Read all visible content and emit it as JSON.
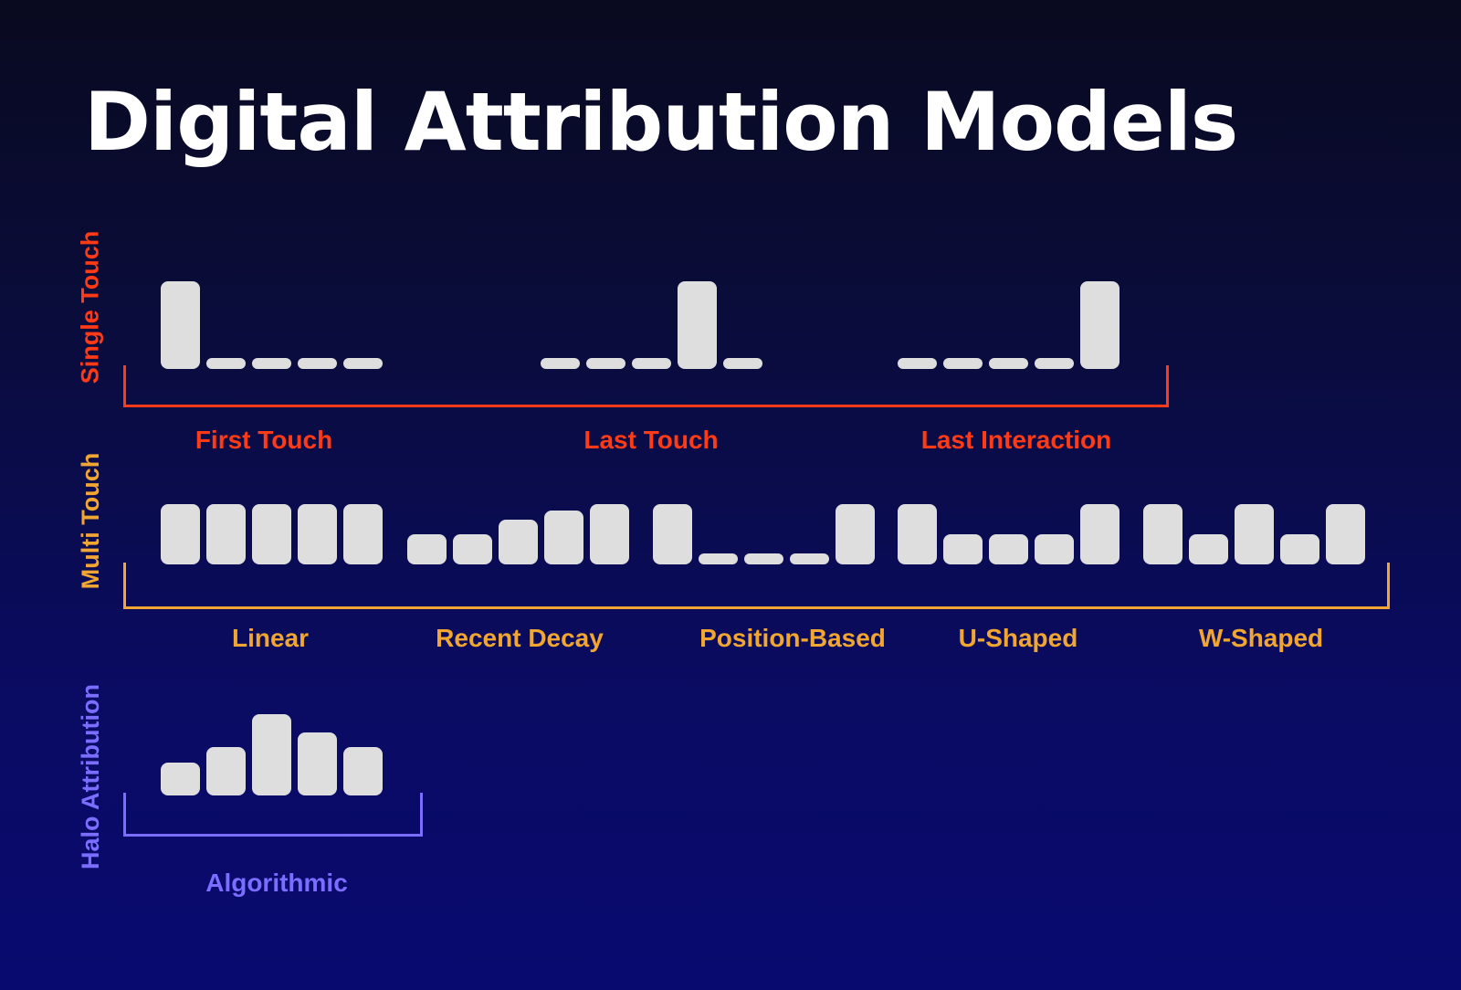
{
  "title": "Digital Attribution Models",
  "colors": {
    "single_touch": "#ff3a16",
    "multi_touch": "#f0a630",
    "halo": "#7b6dff",
    "bar": "#dedede"
  },
  "groups": [
    {
      "name": "Single Touch",
      "color_key": "single_touch",
      "models": [
        {
          "name": "First Touch",
          "weights": [
            1,
            0,
            0,
            0,
            0
          ]
        },
        {
          "name": "Last Touch",
          "weights": [
            0,
            0,
            0,
            1,
            0
          ]
        },
        {
          "name": "Last Interaction",
          "weights": [
            0,
            0,
            0,
            0,
            1
          ]
        }
      ]
    },
    {
      "name": "Multi Touch",
      "color_key": "multi_touch",
      "models": [
        {
          "name": "Linear",
          "weights": [
            1,
            1,
            1,
            1,
            1
          ]
        },
        {
          "name": "Recent Decay",
          "weights": [
            0.5,
            0.5,
            0.75,
            0.9,
            1
          ]
        },
        {
          "name": "Position-Based",
          "weights": [
            1,
            0,
            0,
            0,
            1
          ]
        },
        {
          "name": "U-Shaped",
          "weights": [
            1,
            0.5,
            0.5,
            0.5,
            1
          ]
        },
        {
          "name": "W-Shaped",
          "weights": [
            1,
            0.5,
            1,
            0.5,
            1
          ]
        }
      ]
    },
    {
      "name": "Halo Attribution",
      "color_key": "halo",
      "models": [
        {
          "name": "Algorithmic",
          "weights": [
            0.4,
            0.6,
            1,
            0.78,
            0.6
          ]
        }
      ]
    }
  ]
}
